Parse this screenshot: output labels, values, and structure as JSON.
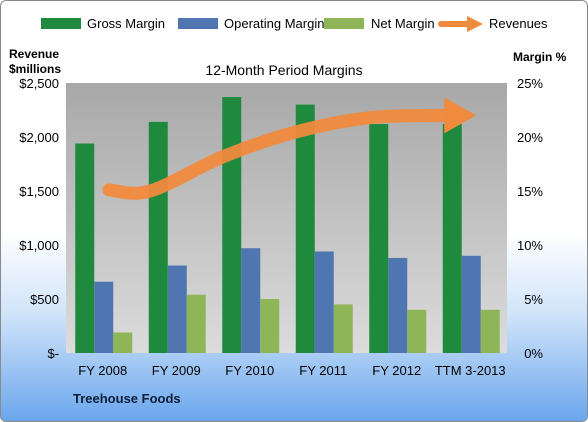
{
  "chart_data": {
    "type": "bar",
    "title": "12-Month Period Margins",
    "company": "Treehouse Foods",
    "left_axis_label_line1": "Revenue",
    "left_axis_label_line2": "$millions",
    "right_axis_label": "Margin %",
    "categories": [
      "FY 2008",
      "FY 2009",
      "FY 2010",
      "FY 2011",
      "FY 2012",
      "TTM 3-2013"
    ],
    "left_ticks": [
      "$-",
      "$500",
      "$1,000",
      "$1,500",
      "$2,000",
      "$2,500"
    ],
    "right_ticks": [
      "0%",
      "5%",
      "10%",
      "15%",
      "20%",
      "25%"
    ],
    "left_ylim": [
      0,
      2500
    ],
    "right_ylim": [
      0,
      25
    ],
    "legend_position": "top",
    "grid": false,
    "series": [
      {
        "name": "Gross Margin",
        "type": "bar",
        "axis": "right",
        "color": "#1f8a3e",
        "values": [
          19.4,
          21.4,
          23.7,
          23.0,
          21.2,
          21.2
        ]
      },
      {
        "name": "Operating Margin",
        "type": "bar",
        "axis": "right",
        "color": "#4f76b0",
        "values": [
          6.6,
          8.1,
          9.7,
          9.4,
          8.8,
          9.0
        ]
      },
      {
        "name": "Net Margin",
        "type": "bar",
        "axis": "right",
        "color": "#8fb559",
        "values": [
          1.9,
          5.4,
          5.0,
          4.5,
          4.0,
          4.0
        ]
      },
      {
        "name": "Revenues",
        "type": "line",
        "axis": "left",
        "color": "#f08a3c",
        "values": [
          1510,
          1500,
          1820,
          2050,
          2180,
          2200
        ]
      }
    ]
  }
}
